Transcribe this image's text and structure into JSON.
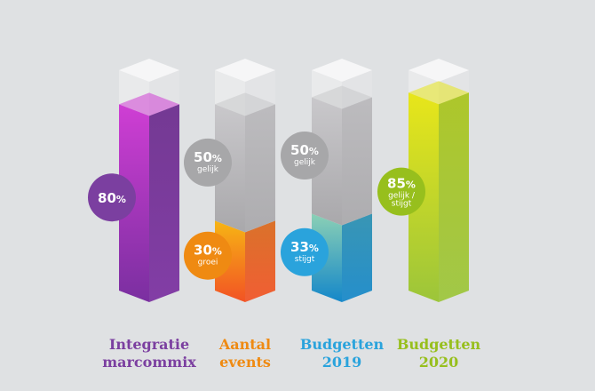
{
  "chart_data": {
    "type": "bar",
    "ylim": [
      0,
      100
    ],
    "grid": false,
    "colors": {
      "purple": "#7b3fa0",
      "orange": "#ef8a12",
      "gray": "#a7a7a9",
      "blue": "#2aa3dc",
      "green": "#97bf1d"
    },
    "columns": [
      {
        "label_line1": "Integratie",
        "label_line2": "marcommix",
        "label_color": "#7b3fa0",
        "segments": [
          {
            "value": 80,
            "value_text": "80",
            "unit": "%",
            "caption": "",
            "caption2": "",
            "badge_color": "#7b3fa0",
            "fill_top": "#cf3ed4",
            "fill_bottom": "#7a2fa0",
            "fill_side": "#6a2a8c"
          }
        ]
      },
      {
        "label_line1": "Aantal",
        "label_line2": "events",
        "label_color": "#ef8a12",
        "segments": [
          {
            "value": 30,
            "value_text": "30",
            "unit": "%",
            "caption": "groei",
            "caption2": "",
            "badge_color": "#ef8a12",
            "fill_top": "#f7b514",
            "fill_bottom": "#f25224",
            "fill_side": "#d9681a"
          },
          {
            "value": 50,
            "value_text": "50",
            "unit": "%",
            "caption": "gelijk",
            "caption2": "",
            "badge_color": "#a7a7a9",
            "fill_top": "#c9c8cb",
            "fill_bottom": "#a9a8ab",
            "fill_side": "#b9b8bb"
          }
        ]
      },
      {
        "label_line1": "Budgetten",
        "label_line2": "2019",
        "label_color": "#2aa3dc",
        "segments": [
          {
            "value": 33,
            "value_text": "33",
            "unit": "%",
            "caption": "stijgt",
            "caption2": "",
            "badge_color": "#2aa3dc",
            "fill_top": "#8bd0b5",
            "fill_bottom": "#1487c9",
            "fill_side": "#2a8fb0"
          },
          {
            "value": 50,
            "value_text": "50",
            "unit": "%",
            "caption": "gelijk",
            "caption2": "",
            "badge_color": "#a7a7a9",
            "fill_top": "#c9c8cb",
            "fill_bottom": "#a9a8ab",
            "fill_side": "#b9b8bb"
          }
        ]
      },
      {
        "label_line1": "Budgetten",
        "label_line2": "2020",
        "label_color": "#97bf1d",
        "segments": [
          {
            "value": 85,
            "value_text": "85",
            "unit": "%",
            "caption": "gelijk /",
            "caption2": "stijgt",
            "badge_color": "#97bf1d",
            "fill_top": "#e8e61a",
            "fill_bottom": "#9cc53a",
            "fill_side": "#a9c41a"
          }
        ]
      }
    ]
  }
}
